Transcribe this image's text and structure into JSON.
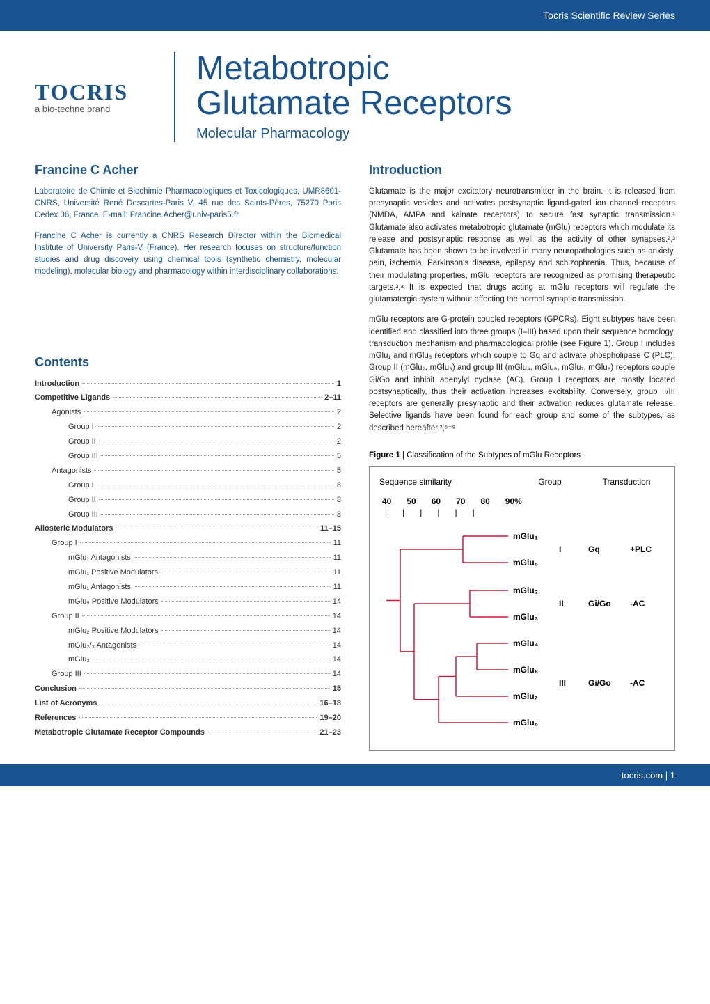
{
  "banner": {
    "series": "Tocris Scientific Review Series"
  },
  "logo": {
    "brand": "TOCRIS",
    "tagline": "a bio-techne brand"
  },
  "title": {
    "line1": "Metabotropic",
    "line2": "Glutamate Receptors",
    "sub": "Molecular Pharmacology"
  },
  "author": {
    "name": "Francine C Acher",
    "affil": "Laboratoire de Chimie et Biochimie Pharmacologiques et Toxicologiques, UMR8601-CNRS, Université René Descartes-Paris V, 45 rue des Saints-Pères, 75270 Paris Cedex 06, France. E-mail: Francine.Acher@univ-paris5.fr",
    "bio": "Francine C Acher is currently a CNRS Research Director within the Biomedical Institute of University Paris-V (France). Her research focuses on structure/function studies and drug discovery using chemical tools (synthetic chemistry, molecular modeling), molecular biology and pharmacology within interdisciplinary collaborations."
  },
  "intro": {
    "heading": "Introduction",
    "p1": "Glutamate is the major excitatory neurotransmitter in the brain. It is released from presynaptic vesicles and activates postsynaptic ligand-gated ion channel receptors (NMDA, AMPA and kainate receptors) to secure fast synaptic transmission.¹ Glutamate also activates metabotropic glutamate (mGlu) receptors which modulate its release and postsynaptic response as well as the activity of other synapses.²,³ Glutamate has been shown to be involved in many neuropathologies such as anxiety, pain, ischemia, Parkinson's disease, epilepsy and schizophrenia. Thus, because of their modulating properties, mGlu receptors are recognized as promising therapeutic targets.³,⁴ It is expected that drugs acting at mGlu receptors will regulate the glutamatergic system without affecting the normal synaptic transmission.",
    "p2": "mGlu receptors are G-protein coupled receptors (GPCRs). Eight subtypes have been identified and classified into three groups (I–III) based upon their sequence homology, transduction mechanism and pharmacological profile (see Figure 1). Group I includes mGlu₁ and mGlu₅ receptors which couple to Gq and activate phospholipase C (PLC). Group II (mGlu₂, mGlu₃) and group III (mGlu₄, mGlu₆, mGlu₇, mGlu₈) receptors couple Gi/Go and inhibit adenylyl cyclase (AC). Group I receptors are mostly located postsynaptically, thus their activation increases excitability. Conversely, group II/III receptors are generally presynaptic and their activation reduces glutamate release. Selective ligands have been found for each group and some of the subtypes, as described hereafter.²,⁵⁻⁸"
  },
  "contents": {
    "heading": "Contents",
    "items": [
      {
        "label": "Introduction",
        "page": "1",
        "level": 0
      },
      {
        "label": "Competitive Ligands",
        "page": "2–11",
        "level": 0
      },
      {
        "label": "Agonists",
        "page": "2",
        "level": 1
      },
      {
        "label": "Group I",
        "page": "2",
        "level": 2
      },
      {
        "label": "Group II",
        "page": "2",
        "level": 2
      },
      {
        "label": "Group III",
        "page": "5",
        "level": 2
      },
      {
        "label": "Antagonists",
        "page": "5",
        "level": 1
      },
      {
        "label": "Group I",
        "page": "8",
        "level": 2
      },
      {
        "label": "Group II",
        "page": "8",
        "level": 2
      },
      {
        "label": "Group III",
        "page": "8",
        "level": 2
      },
      {
        "label": "Allosteric Modulators",
        "page": "11–15",
        "level": 0
      },
      {
        "label": "Group I",
        "page": "11",
        "level": 1
      },
      {
        "label": "mGlu₁ Antagonists",
        "page": "11",
        "level": 2
      },
      {
        "label": "mGlu₁ Positive Modulators",
        "page": "11",
        "level": 2
      },
      {
        "label": "mGlu₁ Antagonists",
        "page": "11",
        "level": 2
      },
      {
        "label": "mGlu₅ Positive Modulators",
        "page": "14",
        "level": 2
      },
      {
        "label": "Group II",
        "page": "14",
        "level": 1
      },
      {
        "label": "mGlu₂ Positive Modulators",
        "page": "14",
        "level": 2
      },
      {
        "label": "mGlu₂/₃ Antagonists",
        "page": "14",
        "level": 2
      },
      {
        "label": "mGlu₃",
        "page": "14",
        "level": 2
      },
      {
        "label": "Group III",
        "page": "14",
        "level": 1
      },
      {
        "label": "Conclusion",
        "page": "15",
        "level": 0
      },
      {
        "label": "List of Acronyms",
        "page": "16–18",
        "level": 0
      },
      {
        "label": "References",
        "page": "19–20",
        "level": 0
      },
      {
        "label": "Metabotropic Glutamate Receptor Compounds",
        "page": "21–23",
        "level": 0
      }
    ]
  },
  "figure1": {
    "caption_bold": "Figure 1",
    "caption_text": " | Classification of the Subtypes of mGlu Receptors",
    "headers": {
      "h1": "Sequence similarity",
      "h2": "Group",
      "h3": "Transduction"
    },
    "scale": [
      "40",
      "50",
      "60",
      "70",
      "80",
      "90%"
    ],
    "tree_color": "#c91b3c",
    "leaves": [
      "mGlu₁",
      "mGlu₅",
      "mGlu₂",
      "mGlu₃",
      "mGlu₄",
      "mGlu₈",
      "mGlu₇",
      "mGlu₆"
    ],
    "groups": [
      {
        "roman": "I",
        "gprotein": "Gq",
        "effect": "+PLC"
      },
      {
        "roman": "II",
        "gprotein": "Gi/Go",
        "effect": "-AC"
      },
      {
        "roman": "III",
        "gprotein": "Gi/Go",
        "effect": "-AC"
      }
    ],
    "leaves_y": [
      10,
      48,
      88,
      126,
      164,
      202,
      240,
      278
    ],
    "group_y": [
      29,
      107,
      221
    ]
  },
  "footer": {
    "site": "tocris.com",
    "pagenum": "1"
  },
  "colors": {
    "brand_blue": "#1a5490",
    "tree_red": "#c91b3c",
    "text": "#222222",
    "border_gray": "#888888"
  }
}
